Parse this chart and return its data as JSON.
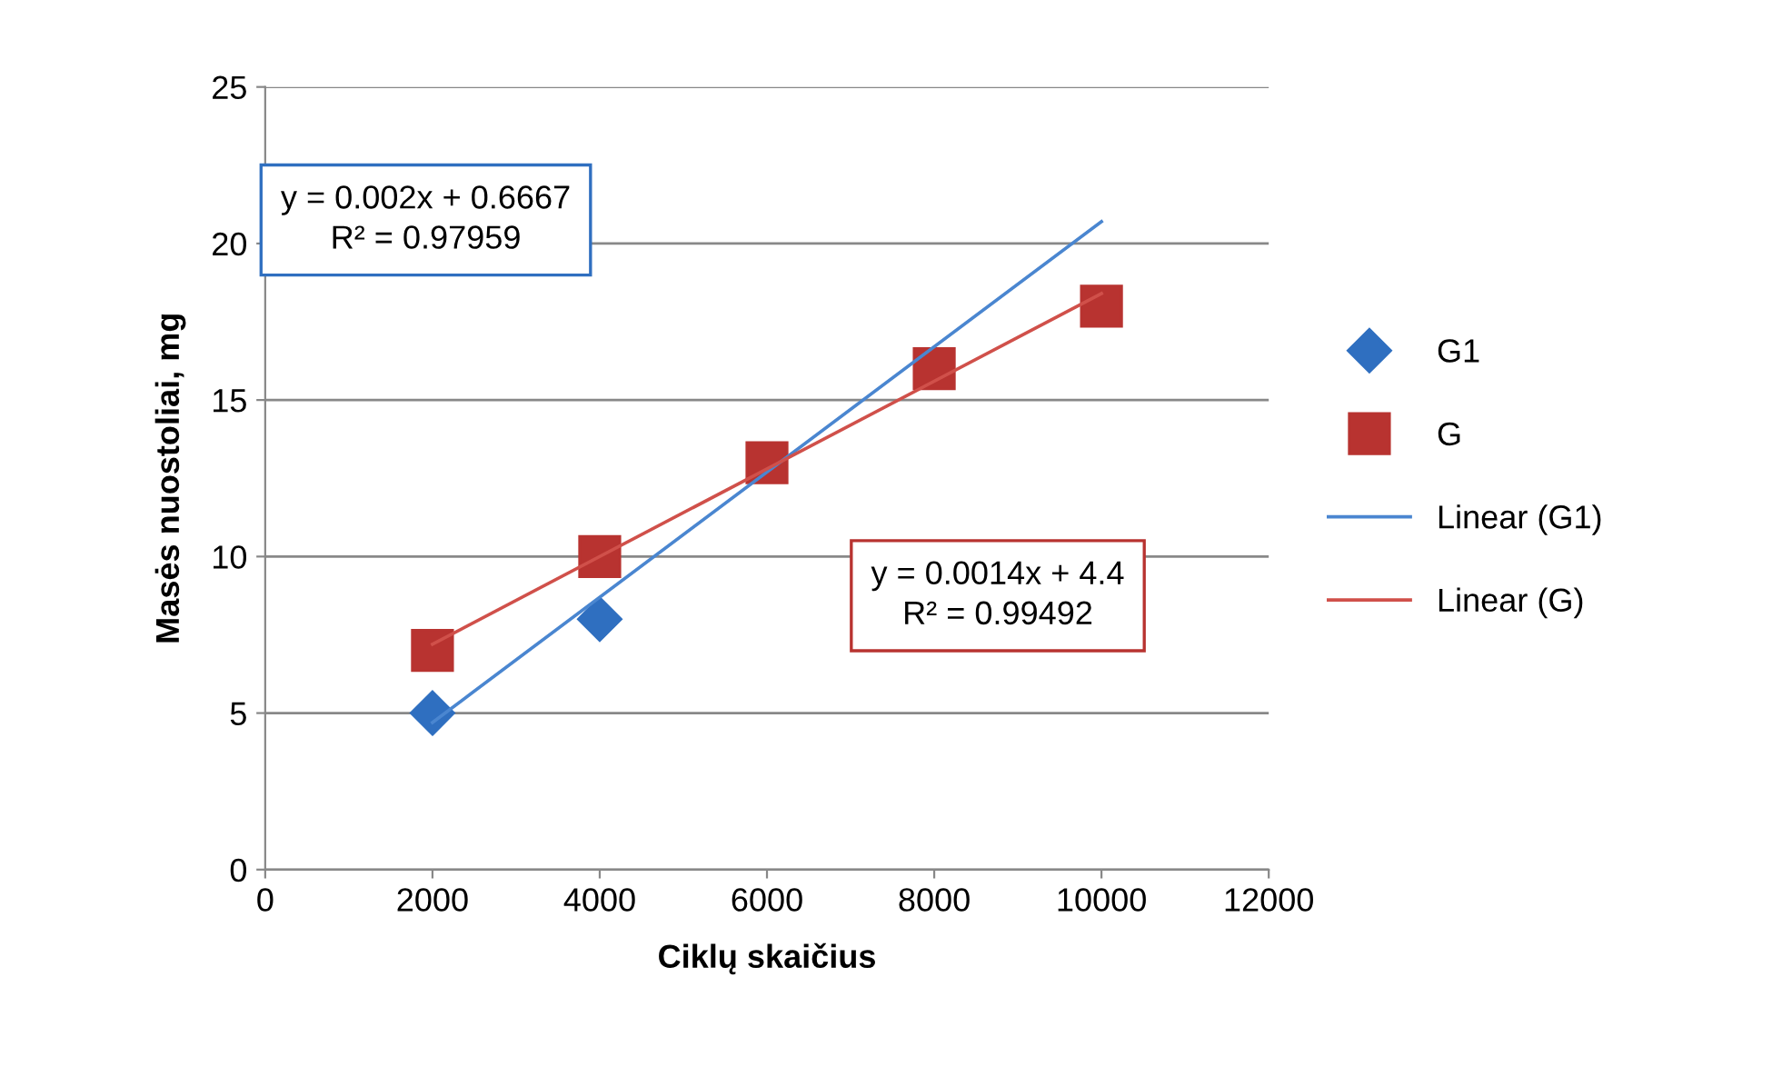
{
  "chart_data": {
    "type": "scatter",
    "xlabel": "Ciklų skaičius",
    "ylabel": "Masės nuostoliai, mg",
    "xlim": [
      0,
      12000
    ],
    "xticks": [
      0,
      2000,
      4000,
      6000,
      8000,
      10000,
      12000
    ],
    "ylim": [
      0,
      25
    ],
    "yticks": [
      0,
      5,
      10,
      15,
      20,
      25
    ],
    "grid": "y",
    "legend": "right",
    "series": [
      {
        "name": "G1",
        "marker": "diamond",
        "color": "#2f6fc0",
        "x": [
          2000,
          4000
        ],
        "values": [
          5,
          8
        ]
      },
      {
        "name": "G",
        "marker": "square",
        "color": "#b83330",
        "x": [
          2000,
          4000,
          6000,
          8000,
          10000
        ],
        "values": [
          7,
          10,
          13,
          16,
          18
        ]
      },
      {
        "name": "Linear (G1)",
        "type": "line",
        "marker": "none",
        "line_style": "solid",
        "color": "#4a86d0",
        "x": [
          2000,
          10000
        ],
        "values": [
          4.7,
          20.7
        ]
      },
      {
        "name": "Linear (G)",
        "type": "line",
        "marker": "none",
        "line_style": "solid",
        "color": "#d0504a",
        "x": [
          2000,
          10000
        ],
        "values": [
          7.2,
          18.4
        ]
      }
    ],
    "annotations": [
      "y = 0.002x + 0.6667\nR² = 0.97959",
      "y = 0.0014x + 4.4\nR² = 0.99492"
    ]
  }
}
